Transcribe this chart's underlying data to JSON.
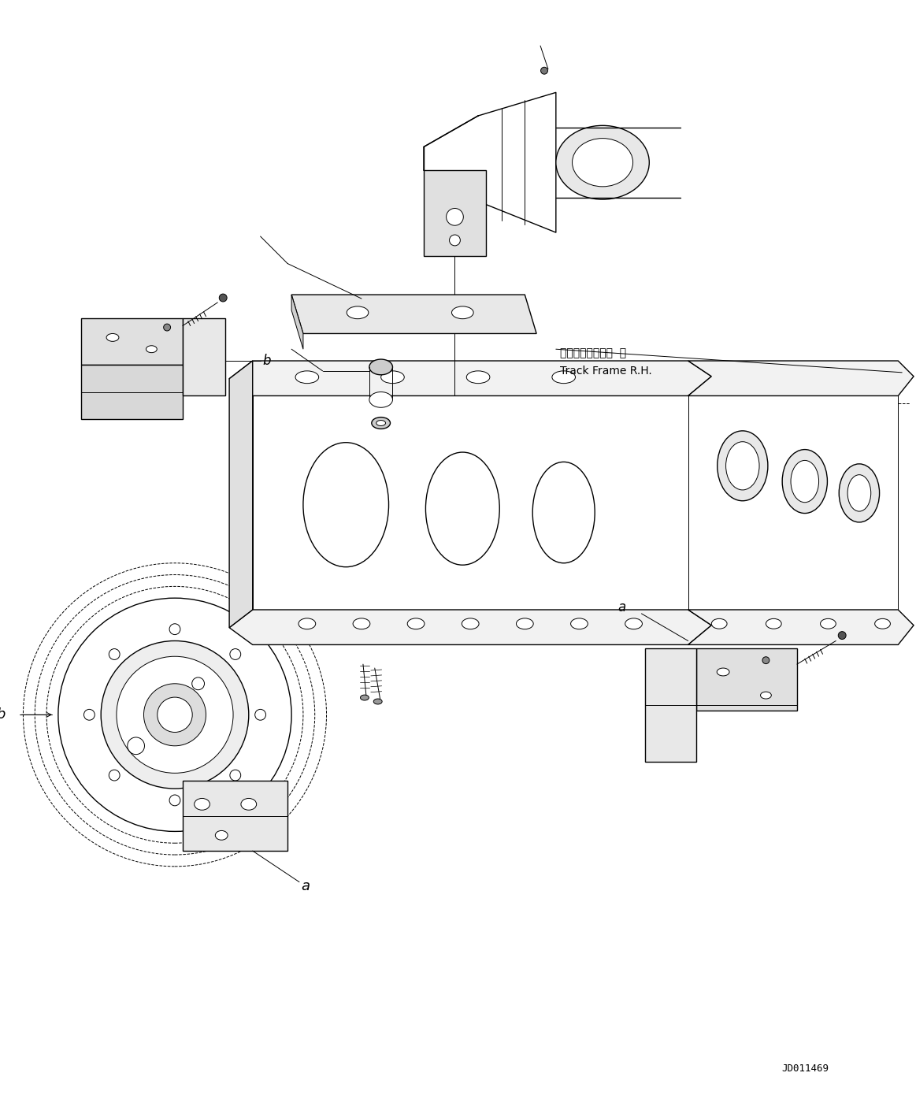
{
  "bg_color": "#ffffff",
  "line_color": "#000000",
  "drawing_id": "JD011469",
  "label_a": "a",
  "label_b": "b",
  "track_frame_jp": "トラックフレーム  右",
  "track_frame_en": "Track Frame R.H.",
  "figsize": [
    11.63,
    13.9
  ],
  "dpi": 100
}
